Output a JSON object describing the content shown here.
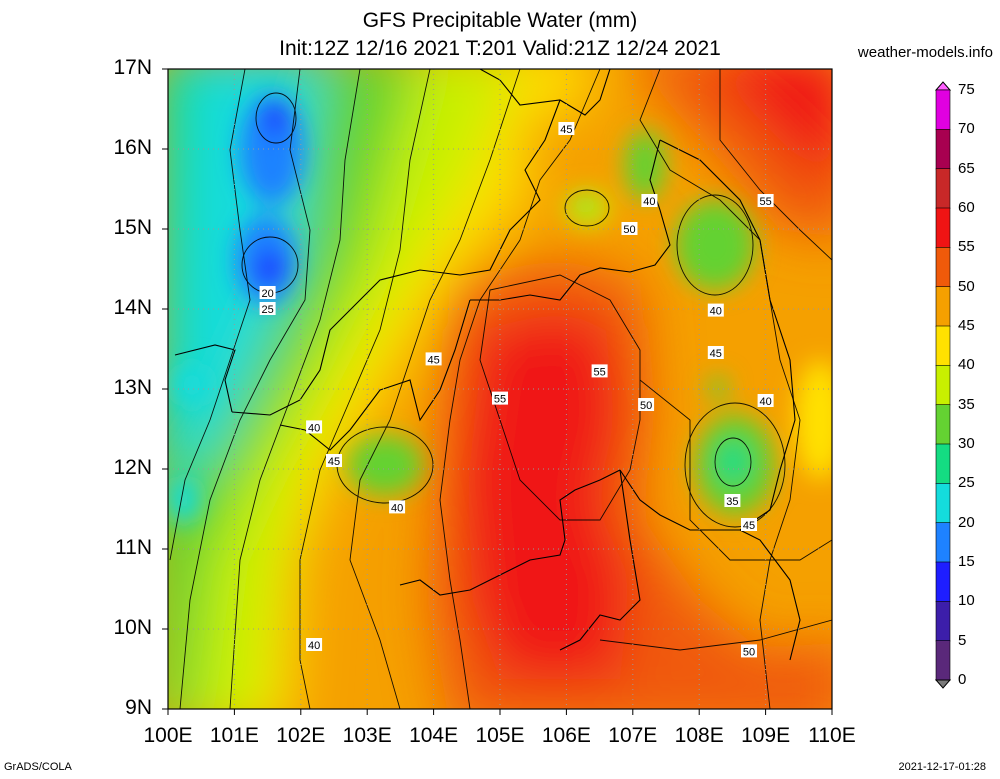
{
  "header": {
    "title_line1": "GFS Precipitable Water (mm)",
    "title_line2": "Init:12Z 12/16 2021 T:201 Valid:21Z 12/24 2021",
    "site": "weather-models.info"
  },
  "axes": {
    "lat_labels": [
      "17N",
      "16N",
      "15N",
      "14N",
      "13N",
      "12N",
      "11N",
      "10N",
      "9N"
    ],
    "lon_labels": [
      "100E",
      "101E",
      "102E",
      "103E",
      "104E",
      "105E",
      "106E",
      "107E",
      "108E",
      "109E",
      "110E"
    ]
  },
  "colorbar": {
    "labels": [
      "75",
      "70",
      "65",
      "60",
      "55",
      "50",
      "45",
      "40",
      "35",
      "30",
      "25",
      "20",
      "15",
      "10",
      "5",
      "0"
    ],
    "colors": [
      "#ff60ff",
      "#e000e0",
      "#a80050",
      "#c82828",
      "#f01414",
      "#f05a0a",
      "#f5a000",
      "#ffe100",
      "#c8f000",
      "#64d232",
      "#14dc82",
      "#14dcdc",
      "#1e82ff",
      "#1e1eff",
      "#3c1eaa",
      "#5a287a",
      "#7a7a7a"
    ]
  },
  "contour_labels": [
    {
      "text": "45",
      "lon": 106.0,
      "lat": 16.25
    },
    {
      "text": "55",
      "lon": 109.0,
      "lat": 15.35
    },
    {
      "text": "40",
      "lon": 107.25,
      "lat": 15.35
    },
    {
      "text": "50",
      "lon": 106.95,
      "lat": 15.0
    },
    {
      "text": "20",
      "lon": 101.5,
      "lat": 14.2
    },
    {
      "text": "25",
      "lon": 101.5,
      "lat": 14.0
    },
    {
      "text": "40",
      "lon": 108.25,
      "lat": 13.98
    },
    {
      "text": "45",
      "lon": 104.0,
      "lat": 13.37
    },
    {
      "text": "45",
      "lon": 108.25,
      "lat": 13.45
    },
    {
      "text": "55",
      "lon": 106.5,
      "lat": 13.22
    },
    {
      "text": "55",
      "lon": 105.0,
      "lat": 12.88
    },
    {
      "text": "50",
      "lon": 107.2,
      "lat": 12.8
    },
    {
      "text": "40",
      "lon": 109.0,
      "lat": 12.85
    },
    {
      "text": "40",
      "lon": 102.2,
      "lat": 12.52
    },
    {
      "text": "45",
      "lon": 102.5,
      "lat": 12.1
    },
    {
      "text": "40",
      "lon": 103.45,
      "lat": 11.52
    },
    {
      "text": "35",
      "lon": 108.5,
      "lat": 11.6
    },
    {
      "text": "45",
      "lon": 108.75,
      "lat": 11.3
    },
    {
      "text": "40",
      "lon": 102.2,
      "lat": 9.8
    },
    {
      "text": "50",
      "lon": 108.75,
      "lat": 9.72
    }
  ],
  "footer": {
    "credit": "GrADS/COLA",
    "timestamp": "2021-12-17-01:28"
  }
}
